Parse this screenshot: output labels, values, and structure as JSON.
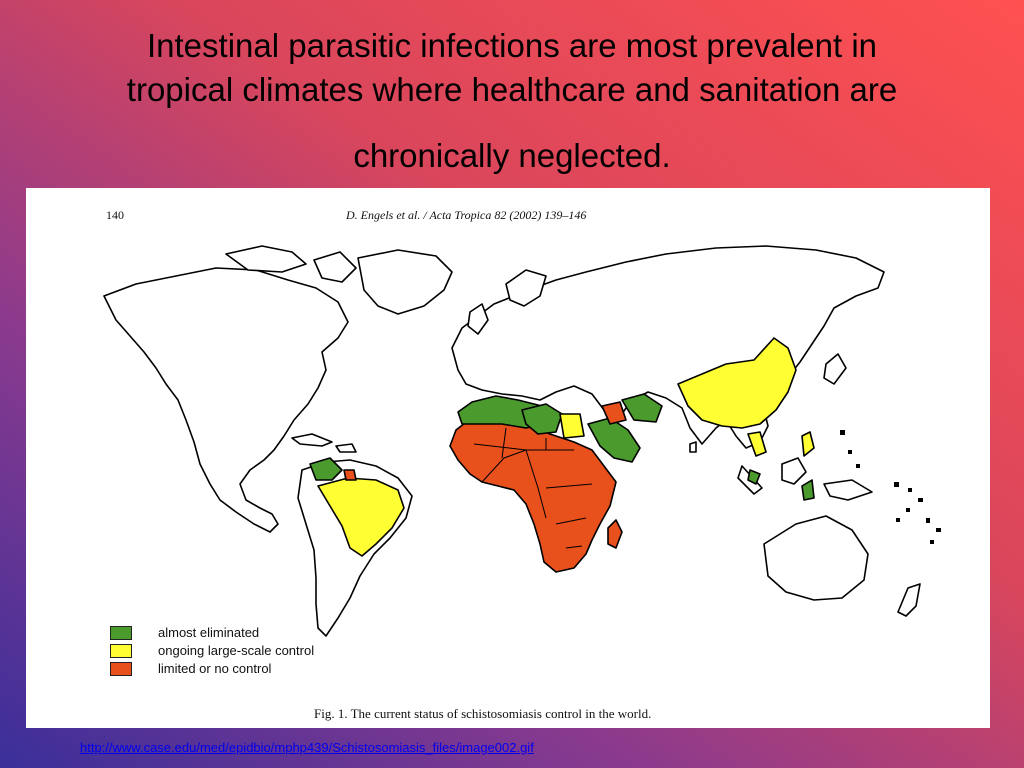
{
  "slide": {
    "title_lines": [
      "Intestinal parasitic infections are most prevalent in",
      "tropical climates where healthcare and sanitation are",
      "chronically neglected."
    ]
  },
  "figure": {
    "page_number": "140",
    "header": "D. Engels et al. / Acta Tropica 82 (2002) 139–146",
    "caption": "Fig. 1. The current status of schistosomiasis control in the world.",
    "legend": [
      {
        "label": "almost eliminated",
        "color": "#4a9a2e"
      },
      {
        "label": "ongoing large-scale control",
        "color": "#ffff33"
      },
      {
        "label": "limited or no control",
        "color": "#e8501c"
      }
    ],
    "land_color": "#ffffff",
    "border_color": "#000000"
  },
  "source_url": "http://www.case.edu/med/epidbio/mphp439/Schistosomiasis_files/image002.gif"
}
